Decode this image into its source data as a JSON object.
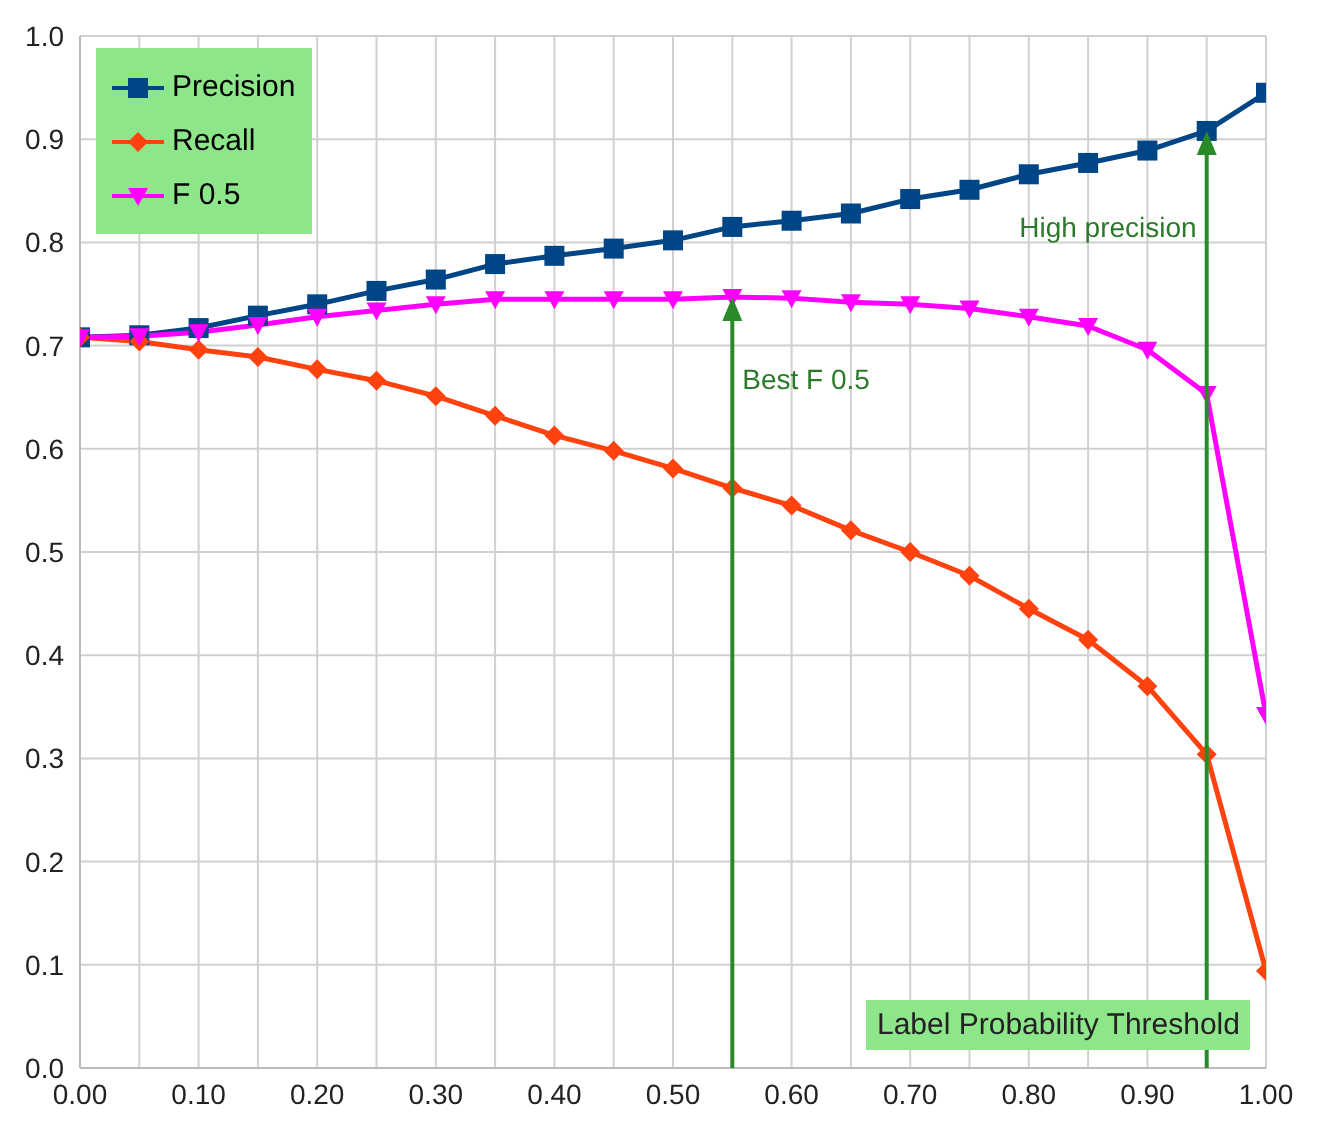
{
  "chart_data": {
    "type": "line",
    "xlabel": "Label Probability Threshold",
    "x": [
      0,
      0.05,
      0.1,
      0.15,
      0.2,
      0.25,
      0.3,
      0.35,
      0.4,
      0.45,
      0.5,
      0.55,
      0.6,
      0.65,
      0.7,
      0.75,
      0.8,
      0.85,
      0.9,
      0.95,
      1
    ],
    "series": [
      {
        "name": "Precision",
        "color": "#004586",
        "marker": "square",
        "values": [
          0.708,
          0.71,
          0.717,
          0.729,
          0.74,
          0.753,
          0.764,
          0.779,
          0.787,
          0.794,
          0.802,
          0.815,
          0.821,
          0.828,
          0.842,
          0.851,
          0.866,
          0.877,
          0.889,
          0.908,
          0.945
        ]
      },
      {
        "name": "Recall",
        "color": "#ff420e",
        "marker": "diamond",
        "values": [
          0.708,
          0.704,
          0.696,
          0.689,
          0.677,
          0.666,
          0.651,
          0.632,
          0.613,
          0.598,
          0.581,
          0.562,
          0.545,
          0.521,
          0.5,
          0.477,
          0.445,
          0.415,
          0.37,
          0.304,
          0.094
        ]
      },
      {
        "name": "F 0.5",
        "color": "#ff00ff",
        "marker": "triangle",
        "values": [
          0.708,
          0.709,
          0.713,
          0.72,
          0.728,
          0.734,
          0.74,
          0.745,
          0.745,
          0.745,
          0.745,
          0.747,
          0.746,
          0.742,
          0.74,
          0.736,
          0.728,
          0.719,
          0.696,
          0.653,
          0.342
        ]
      }
    ],
    "xlim": [
      0,
      1
    ],
    "xticks": [
      {
        "value": 0,
        "label": "0.00"
      },
      {
        "value": 0.05,
        "label": null
      },
      {
        "value": 0.1,
        "label": "0.10"
      },
      {
        "value": 0.15,
        "label": null
      },
      {
        "value": 0.2,
        "label": "0.20"
      },
      {
        "value": 0.25,
        "label": null
      },
      {
        "value": 0.3,
        "label": "0.30"
      },
      {
        "value": 0.35,
        "label": null
      },
      {
        "value": 0.4,
        "label": "0.40"
      },
      {
        "value": 0.45,
        "label": null
      },
      {
        "value": 0.5,
        "label": "0.50"
      },
      {
        "value": 0.55,
        "label": null
      },
      {
        "value": 0.6,
        "label": "0.60"
      },
      {
        "value": 0.65,
        "label": null
      },
      {
        "value": 0.7,
        "label": "0.70"
      },
      {
        "value": 0.75,
        "label": null
      },
      {
        "value": 0.8,
        "label": "0.80"
      },
      {
        "value": 0.85,
        "label": null
      },
      {
        "value": 0.9,
        "label": "0.90"
      },
      {
        "value": 0.95,
        "label": null
      },
      {
        "value": 1,
        "label": "1.00"
      }
    ],
    "ylim": [
      0,
      1
    ],
    "yticks": [
      {
        "value": 0,
        "label": "0.0"
      },
      0.1,
      0.2,
      0.3,
      0.4,
      0.5,
      0.6,
      0.7,
      0.8,
      0.9,
      {
        "value": 1,
        "label": "1.0"
      }
    ],
    "annotations": [
      {
        "text": "Best F 0.5",
        "x": 0.55,
        "y": 0.747
      },
      {
        "text": "High precision",
        "x": 0.95,
        "y": 0.908
      }
    ],
    "grid": true,
    "legend": "top left",
    "line_style": "solid"
  }
}
